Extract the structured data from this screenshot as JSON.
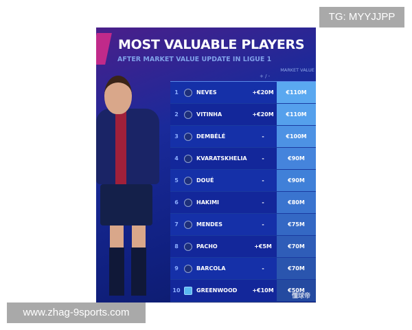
{
  "overlay": {
    "tg": "TG: MYYJJPP",
    "website": "www.zhag-9sports.com"
  },
  "poster": {
    "title": "MOST VALUABLE PLAYERS",
    "subtitle": "AFTER MARKET VALUE UPDATE IN LIGUE 1",
    "col_change": "+ / -",
    "col_value": "MARKET VALUE",
    "watermark": "懂球帝",
    "rows": [
      {
        "rank": "1",
        "club": "PSG",
        "name": "NEVES",
        "change": "+€20M",
        "value": "€110M",
        "color": "#5aa8f0"
      },
      {
        "rank": "2",
        "club": "PSG",
        "name": "VITINHA",
        "change": "+€20M",
        "value": "€110M",
        "color": "#55a0ec"
      },
      {
        "rank": "3",
        "club": "PSG",
        "name": "DEMBÉLÉ",
        "change": "-",
        "value": "€100M",
        "color": "#4d92e4"
      },
      {
        "rank": "4",
        "club": "PSG",
        "name": "KVARATSKHELIA",
        "change": "-",
        "value": "€90M",
        "color": "#4584dc"
      },
      {
        "rank": "5",
        "club": "PSG",
        "name": "DOUÉ",
        "change": "-",
        "value": "€90M",
        "color": "#4080d8"
      },
      {
        "rank": "6",
        "club": "PSG",
        "name": "HAKIMI",
        "change": "-",
        "value": "€80M",
        "color": "#3a74cf"
      },
      {
        "rank": "7",
        "club": "PSG",
        "name": "MENDES",
        "change": "-",
        "value": "€75M",
        "color": "#3468c4"
      },
      {
        "rank": "8",
        "club": "PSG",
        "name": "PACHO",
        "change": "+€5M",
        "value": "€70M",
        "color": "#2f5db8"
      },
      {
        "rank": "9",
        "club": "PSG",
        "name": "BARCOLA",
        "change": "-",
        "value": "€70M",
        "color": "#2a55ae"
      },
      {
        "rank": "10",
        "club": "Marseille",
        "name": "GREENWOOD",
        "change": "+€10M",
        "value": "€50M",
        "color": "#244aa0"
      }
    ]
  }
}
